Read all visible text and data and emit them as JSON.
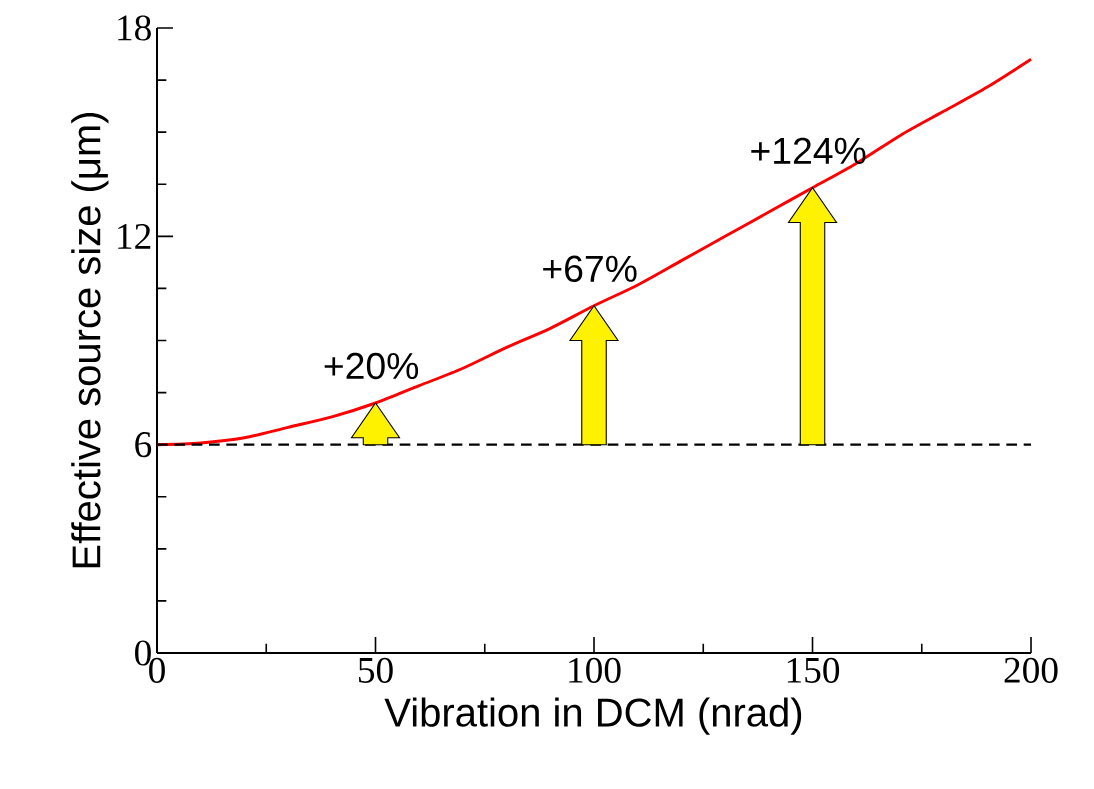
{
  "chart_data": {
    "type": "line",
    "xlabel": "Vibration in DCM (nrad)",
    "ylabel": "Effective source size (μm)",
    "x": [
      0,
      10,
      20,
      30,
      40,
      50,
      60,
      70,
      80,
      90,
      100,
      110,
      120,
      130,
      140,
      150,
      160,
      170,
      180,
      190,
      200
    ],
    "series": [
      {
        "color": "#ff0000",
        "values": [
          6.0,
          6.05,
          6.2,
          6.5,
          6.8,
          7.2,
          7.7,
          8.2,
          8.8,
          9.35,
          10.0,
          10.6,
          11.3,
          12.0,
          12.7,
          13.4,
          14.1,
          14.9,
          15.6,
          16.3,
          17.1
        ]
      }
    ],
    "xlim": [
      0,
      200
    ],
    "ylim": [
      0,
      18
    ],
    "xticks": [
      0,
      50,
      100,
      150,
      200
    ],
    "yticks": [
      0,
      6,
      12,
      18
    ],
    "ref_lines": [
      {
        "axis": "y",
        "value": 6,
        "color": "#000000",
        "line_style": "dashed"
      }
    ],
    "annotations": [
      {
        "text": "+20%",
        "x": 50,
        "y": 7.2
      },
      {
        "text": "+67%",
        "x": 100,
        "y": 10.0
      },
      {
        "text": "+124%",
        "x": 150,
        "y": 13.4
      }
    ],
    "grid": false,
    "marker": "none",
    "line_style": "solid"
  }
}
